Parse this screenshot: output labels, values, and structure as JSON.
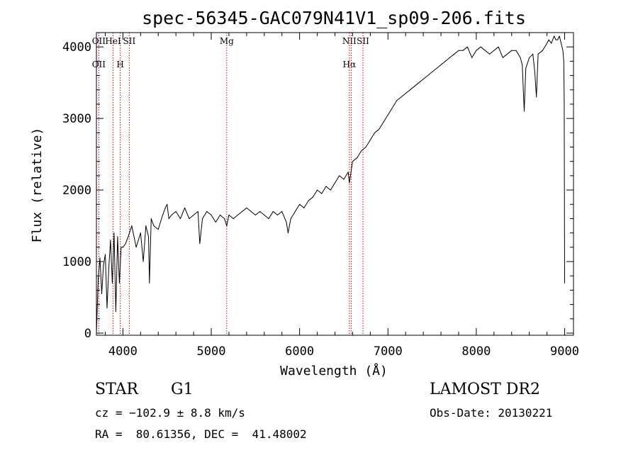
{
  "chart_data": {
    "type": "line",
    "title": "spec-56345-GAC079N41V1_sp09-206.fits",
    "xlabel": "Wavelength (Å)",
    "ylabel": "Flux (relative)",
    "xlim": [
      3700,
      9100
    ],
    "ylim": [
      -30,
      4200
    ],
    "x_ticks": [
      4000,
      5000,
      6000,
      7000,
      8000,
      9000
    ],
    "x_tick_labels": [
      "4000",
      "5000",
      "6000",
      "7000",
      "8000",
      "9000"
    ],
    "y_ticks": [
      0,
      1000,
      2000,
      3000,
      4000
    ],
    "y_tick_labels": [
      "0",
      "1000",
      "2000",
      "3000",
      "4000"
    ],
    "grid": false,
    "series": [
      {
        "color": "#000000",
        "x": [
          3700,
          3720,
          3740,
          3760,
          3780,
          3800,
          3820,
          3840,
          3860,
          3880,
          3900,
          3920,
          3940,
          3960,
          3980,
          4000,
          4030,
          4060,
          4100,
          4150,
          4200,
          4230,
          4260,
          4290,
          4300,
          4320,
          4350,
          4400,
          4450,
          4480,
          4500,
          4520,
          4550,
          4600,
          4650,
          4700,
          4750,
          4800,
          4850,
          4870,
          4900,
          4950,
          5000,
          5050,
          5100,
          5150,
          5175,
          5200,
          5250,
          5300,
          5350,
          5400,
          5450,
          5500,
          5550,
          5600,
          5650,
          5700,
          5750,
          5800,
          5850,
          5870,
          5900,
          5950,
          6000,
          6050,
          6100,
          6150,
          6200,
          6250,
          6300,
          6350,
          6400,
          6450,
          6500,
          6550,
          6563,
          6600,
          6650,
          6700,
          6750,
          6800,
          6850,
          6900,
          6950,
          7000,
          7050,
          7100,
          7150,
          7200,
          7250,
          7300,
          7350,
          7400,
          7450,
          7500,
          7550,
          7600,
          7650,
          7700,
          7750,
          7800,
          7850,
          7900,
          7950,
          8000,
          8050,
          8100,
          8150,
          8200,
          8250,
          8300,
          8350,
          8400,
          8450,
          8498,
          8520,
          8542,
          8560,
          8600,
          8640,
          8662,
          8680,
          8700,
          8750,
          8800,
          8820,
          8850,
          8880,
          8900,
          8920,
          8940,
          8960,
          8980,
          8990,
          8995,
          9000
        ],
        "y": [
          0,
          750,
          1050,
          550,
          950,
          1100,
          350,
          900,
          1300,
          700,
          1400,
          300,
          1350,
          700,
          1200,
          1200,
          1250,
          1350,
          1500,
          1200,
          1400,
          1000,
          1500,
          1350,
          700,
          1600,
          1500,
          1450,
          1650,
          1750,
          1800,
          1600,
          1650,
          1700,
          1600,
          1750,
          1600,
          1650,
          1700,
          1250,
          1600,
          1700,
          1650,
          1550,
          1650,
          1600,
          1500,
          1650,
          1600,
          1650,
          1700,
          1750,
          1700,
          1650,
          1700,
          1650,
          1600,
          1700,
          1650,
          1700,
          1550,
          1400,
          1600,
          1700,
          1800,
          1750,
          1850,
          1900,
          2000,
          1950,
          2050,
          2000,
          2100,
          2200,
          2150,
          2250,
          2100,
          2400,
          2450,
          2550,
          2600,
          2700,
          2800,
          2850,
          2950,
          3050,
          3150,
          3250,
          3300,
          3350,
          3400,
          3450,
          3500,
          3550,
          3600,
          3650,
          3700,
          3750,
          3800,
          3850,
          3900,
          3950,
          3950,
          4000,
          3850,
          3950,
          4000,
          3950,
          3900,
          3950,
          4000,
          3850,
          3900,
          3950,
          3950,
          3850,
          3750,
          3100,
          3700,
          3850,
          3900,
          3650,
          3300,
          3900,
          3950,
          4050,
          4100,
          4050,
          4150,
          4100,
          4100,
          4150,
          4050,
          3950,
          3800,
          3250,
          700
        ]
      }
    ],
    "line_markers": [
      {
        "x": 3727,
        "labels": [
          "OII",
          "OII"
        ]
      },
      {
        "x": 3889,
        "labels": [
          "HeI",
          ""
        ]
      },
      {
        "x": 3970,
        "labels": [
          "",
          "H"
        ]
      },
      {
        "x": 4072,
        "labels": [
          "SII",
          ""
        ]
      },
      {
        "x": 5175,
        "labels": [
          "Mg",
          ""
        ]
      },
      {
        "x": 6563,
        "labels": [
          "NII",
          "Hα"
        ]
      },
      {
        "x": 6584,
        "labels": [
          "",
          ""
        ]
      },
      {
        "x": 6717,
        "labels": [
          "SII",
          ""
        ]
      }
    ],
    "marker_color": "#cc0000"
  },
  "info": {
    "object_class": "STAR",
    "subclass": "G1",
    "survey": "LAMOST DR2",
    "cz_text": "cz = −102.9 ± 8.8 km/s",
    "obs_date_text": "Obs-Date: 20130221",
    "coords_text": "RA =  80.61356, DEC =  41.48002"
  }
}
